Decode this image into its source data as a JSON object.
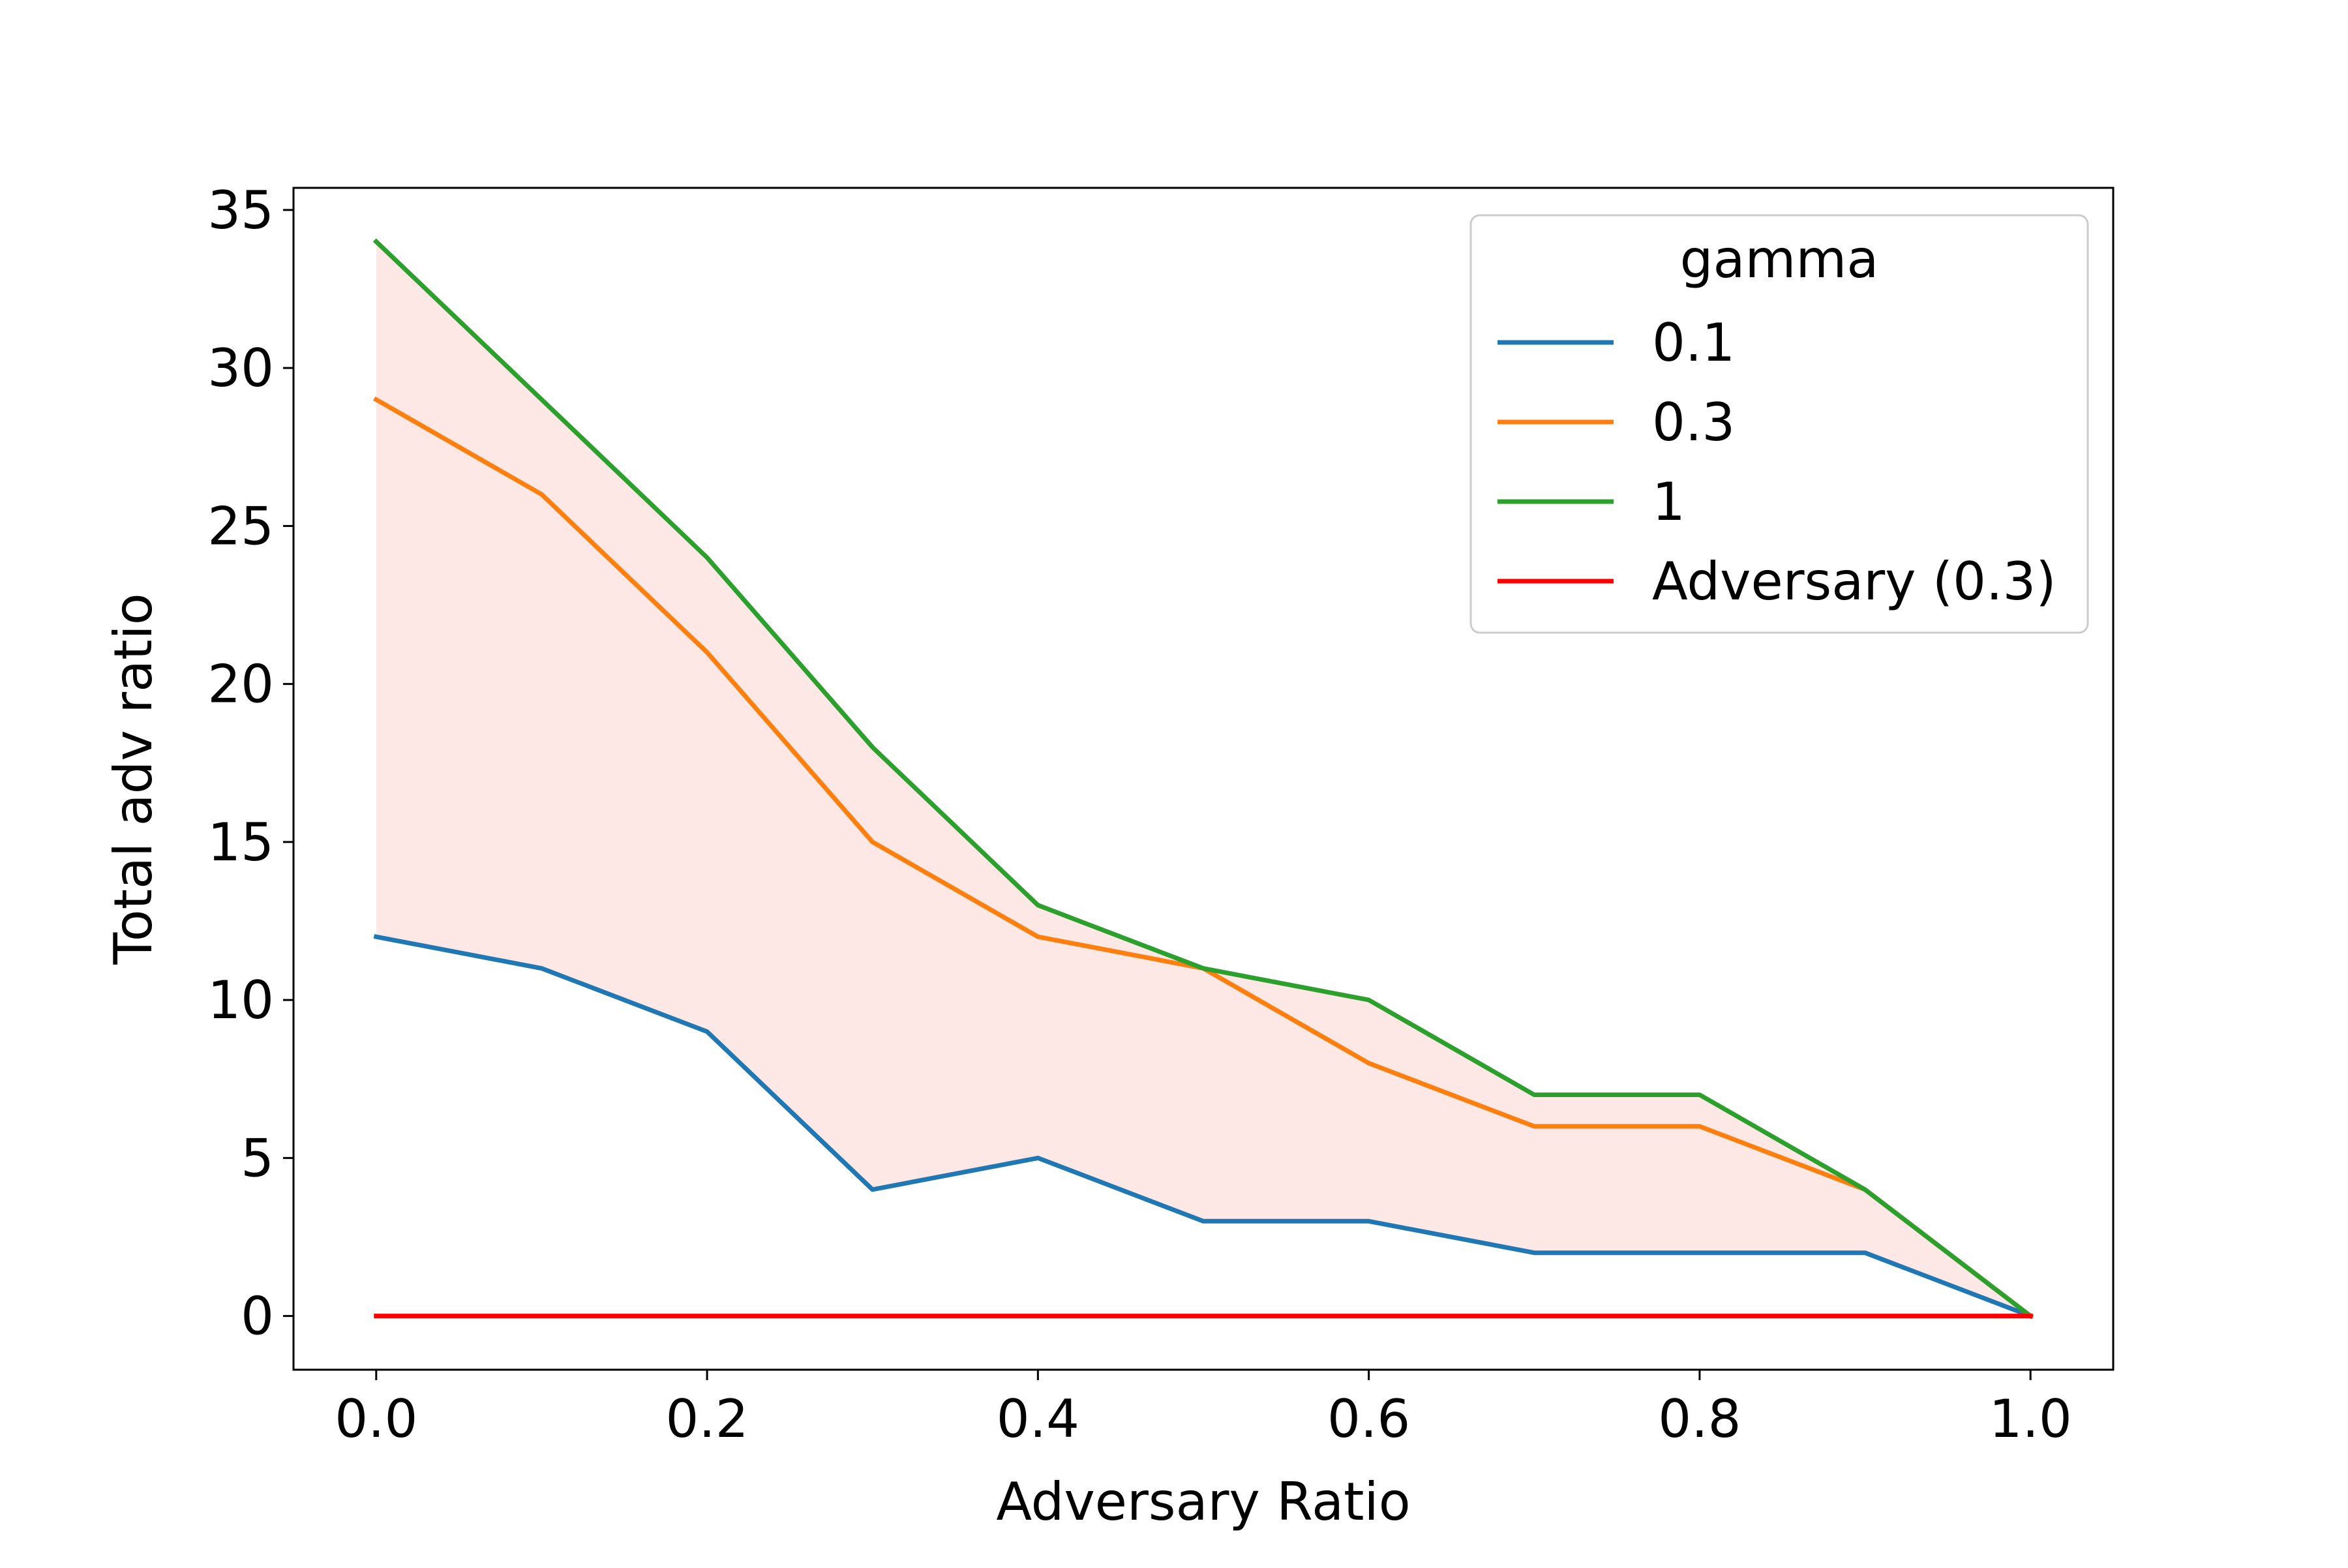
{
  "chart_data": {
    "type": "line",
    "title": "",
    "xlabel": "Adversary Ratio",
    "ylabel": "Total adv ratio",
    "xlim": [
      -0.05,
      1.05
    ],
    "ylim": [
      -1.7,
      35.7
    ],
    "x_ticks": [
      0.0,
      0.2,
      0.4,
      0.6,
      0.8,
      1.0
    ],
    "x_tick_labels": [
      "0.0",
      "0.2",
      "0.4",
      "0.6",
      "0.8",
      "1.0"
    ],
    "y_ticks": [
      0,
      5,
      10,
      15,
      20,
      25,
      30,
      35
    ],
    "y_tick_labels": [
      "0",
      "5",
      "10",
      "15",
      "20",
      "25",
      "30",
      "35"
    ],
    "grid": false,
    "x": [
      0.0,
      0.1,
      0.2,
      0.3,
      0.4,
      0.5,
      0.6,
      0.7,
      0.8,
      0.9,
      1.0
    ],
    "series": [
      {
        "name": "0.1",
        "color": "#1f77b4",
        "values": [
          12,
          11,
          9,
          4,
          5,
          3,
          3,
          2,
          2,
          2,
          0
        ]
      },
      {
        "name": "0.3",
        "color": "#ff7f0e",
        "values": [
          29,
          26,
          21,
          15,
          12,
          11,
          8,
          6,
          6,
          4,
          0
        ]
      },
      {
        "name": "1",
        "color": "#2ca02c",
        "values": [
          34,
          29,
          24,
          18,
          13,
          11,
          10,
          7,
          7,
          4,
          0
        ]
      },
      {
        "name": "Adversary (0.3)",
        "color": "#ff0000",
        "values": [
          0,
          0,
          0,
          0,
          0,
          0,
          0,
          0,
          0,
          0,
          0
        ]
      }
    ],
    "band": {
      "lower_series": "0.1",
      "upper_series": "1",
      "color": "#fde8e6"
    },
    "legend": {
      "title": "gamma",
      "position": "top-right",
      "entries": [
        "0.1",
        "0.3",
        "1",
        "Adversary (0.3)"
      ]
    }
  }
}
